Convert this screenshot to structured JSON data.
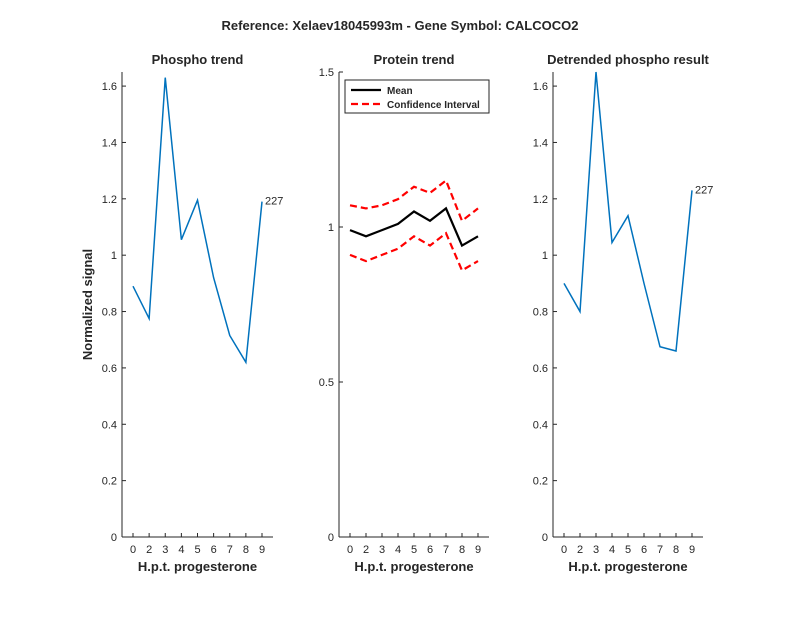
{
  "figure_title": "Reference:  Xelaev18045993m - Gene Symbol:  CALCOCO2",
  "colors": {
    "phospho": "#0072BD",
    "mean": "#000000",
    "ci": "#FF0000",
    "axis": "#262626"
  },
  "chart_data": [
    {
      "type": "line",
      "title": "Phospho trend",
      "xlabel": "H.p.t. progesterone",
      "ylabel": "Normalized signal",
      "categories": [
        "0",
        "2",
        "3",
        "4",
        "5",
        "6",
        "7",
        "8",
        "9"
      ],
      "ylim": [
        0,
        1.65
      ],
      "yticks": [
        "0",
        "0.2",
        "0.4",
        "0.6",
        "0.8",
        "1",
        "1.2",
        "1.4",
        "1.6"
      ],
      "series": [
        {
          "values": [
            0.89,
            0.775,
            1.63,
            1.055,
            1.195,
            0.92,
            0.715,
            0.62,
            1.19
          ]
        }
      ],
      "annotation": "227"
    },
    {
      "type": "line",
      "title": "Protein trend",
      "xlabel": "H.p.t. progesterone",
      "ylabel": "",
      "categories": [
        "0",
        "2",
        "3",
        "4",
        "5",
        "6",
        "7",
        "8",
        "9"
      ],
      "ylim": [
        0,
        1.5
      ],
      "yticks": [
        "0",
        "0.5",
        "1",
        "1.5"
      ],
      "legend_position": "top-left",
      "series": [
        {
          "name": "Mean",
          "values": [
            0.99,
            0.97,
            0.99,
            1.01,
            1.05,
            1.02,
            1.06,
            0.94,
            0.97
          ]
        },
        {
          "name": "Confidence Interval",
          "values": [
            1.07,
            1.06,
            1.07,
            1.09,
            1.13,
            1.11,
            1.15,
            1.02,
            1.06
          ]
        },
        {
          "values": [
            0.91,
            0.89,
            0.91,
            0.93,
            0.97,
            0.94,
            0.98,
            0.86,
            0.89
          ]
        }
      ]
    },
    {
      "type": "line",
      "title": "Detrended phospho result",
      "xlabel": "H.p.t. progesterone",
      "ylabel": "",
      "categories": [
        "0",
        "2",
        "3",
        "4",
        "5",
        "6",
        "7",
        "8",
        "9"
      ],
      "ylim": [
        0,
        1.65
      ],
      "yticks": [
        "0",
        "0.2",
        "0.4",
        "0.6",
        "0.8",
        "1",
        "1.2",
        "1.4",
        "1.6"
      ],
      "series": [
        {
          "values": [
            0.9,
            0.8,
            1.65,
            1.045,
            1.14,
            0.9,
            0.675,
            0.66,
            1.23
          ]
        }
      ],
      "annotation": "227"
    }
  ]
}
